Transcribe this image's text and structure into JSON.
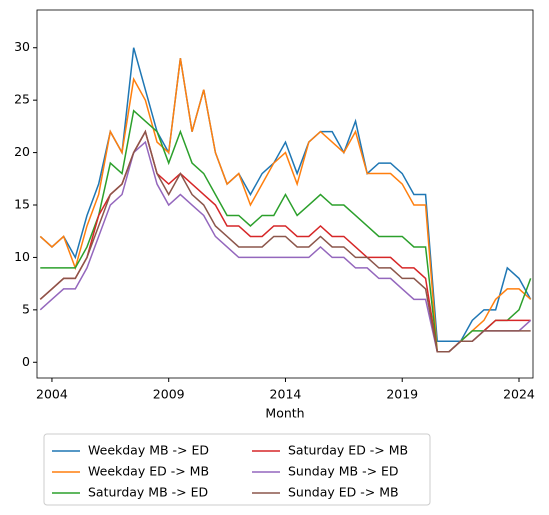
{
  "chart_data": {
    "type": "line",
    "xlabel": "Month",
    "x": [
      2003.5,
      2004,
      2004.5,
      2005,
      2005.5,
      2006,
      2006.5,
      2007,
      2007.5,
      2008,
      2008.5,
      2009,
      2009.5,
      2010,
      2010.5,
      2011,
      2011.5,
      2012,
      2012.5,
      2013,
      2013.5,
      2014,
      2014.5,
      2015,
      2015.5,
      2016,
      2016.5,
      2017,
      2017.5,
      2018,
      2018.5,
      2019,
      2019.5,
      2020,
      2020.5,
      2021,
      2021.5,
      2022,
      2022.5,
      2023,
      2023.5,
      2024,
      2024.5
    ],
    "series": [
      {
        "name": "Weekday MB -> ED",
        "color": "#1f77b4",
        "values": [
          12,
          11,
          12,
          10,
          14,
          17,
          22,
          20,
          30,
          26,
          22,
          20,
          29,
          22,
          26,
          20,
          17,
          18,
          16,
          18,
          19,
          21,
          18,
          21,
          22,
          22,
          20,
          23,
          18,
          19,
          19,
          18,
          16,
          16,
          2,
          2,
          2,
          4,
          5,
          5,
          9,
          8,
          6
        ]
      },
      {
        "name": "Weekday ED -> MB",
        "color": "#ff7f0e",
        "values": [
          12,
          11,
          12,
          9,
          13,
          16,
          22,
          20,
          27,
          25,
          21,
          20,
          29,
          22,
          26,
          20,
          17,
          18,
          15,
          17,
          19,
          20,
          17,
          21,
          22,
          21,
          20,
          22,
          18,
          18,
          18,
          17,
          15,
          15,
          1,
          1,
          2,
          3,
          4,
          6,
          7,
          7,
          6
        ]
      },
      {
        "name": "Saturday MB -> ED",
        "color": "#2ca02c",
        "values": [
          9,
          9,
          9,
          9,
          11,
          14,
          19,
          18,
          24,
          23,
          22,
          19,
          22,
          19,
          18,
          16,
          14,
          14,
          13,
          14,
          14,
          16,
          14,
          15,
          16,
          15,
          15,
          14,
          13,
          12,
          12,
          12,
          11,
          11,
          1,
          1,
          2,
          3,
          3,
          4,
          4,
          5,
          8
        ]
      },
      {
        "name": "Saturday ED -> MB",
        "color": "#d62728",
        "values": [
          6,
          7,
          8,
          8,
          10,
          14,
          16,
          17,
          20,
          22,
          18,
          17,
          18,
          17,
          16,
          15,
          13,
          13,
          12,
          12,
          13,
          13,
          12,
          12,
          13,
          12,
          12,
          11,
          10,
          10,
          10,
          9,
          9,
          8,
          1,
          1,
          2,
          2,
          3,
          4,
          4,
          4,
          4
        ]
      },
      {
        "name": "Sunday MB -> ED",
        "color": "#9467bd",
        "values": [
          5,
          6,
          7,
          7,
          9,
          12,
          15,
          16,
          20,
          21,
          17,
          15,
          16,
          15,
          14,
          12,
          11,
          10,
          10,
          10,
          10,
          10,
          10,
          10,
          11,
          10,
          10,
          9,
          9,
          8,
          8,
          7,
          6,
          6,
          1,
          1,
          2,
          2,
          3,
          3,
          3,
          3,
          4
        ]
      },
      {
        "name": "Sunday ED -> MB",
        "color": "#8c564b",
        "values": [
          6,
          7,
          8,
          8,
          10,
          13,
          16,
          17,
          20,
          22,
          18,
          16,
          18,
          16,
          15,
          13,
          12,
          11,
          11,
          11,
          12,
          12,
          11,
          11,
          12,
          11,
          11,
          10,
          10,
          9,
          9,
          8,
          8,
          7,
          1,
          1,
          2,
          2,
          3,
          3,
          3,
          3,
          3
        ]
      }
    ],
    "xlim": [
      2003.36,
      2024.6
    ],
    "xticks": [
      2004,
      2009,
      2014,
      2019,
      2024
    ],
    "ylim": [
      -1.5,
      33.6
    ],
    "yticks": [
      0,
      5,
      10,
      15,
      20,
      25,
      30
    ],
    "legend": "below"
  }
}
